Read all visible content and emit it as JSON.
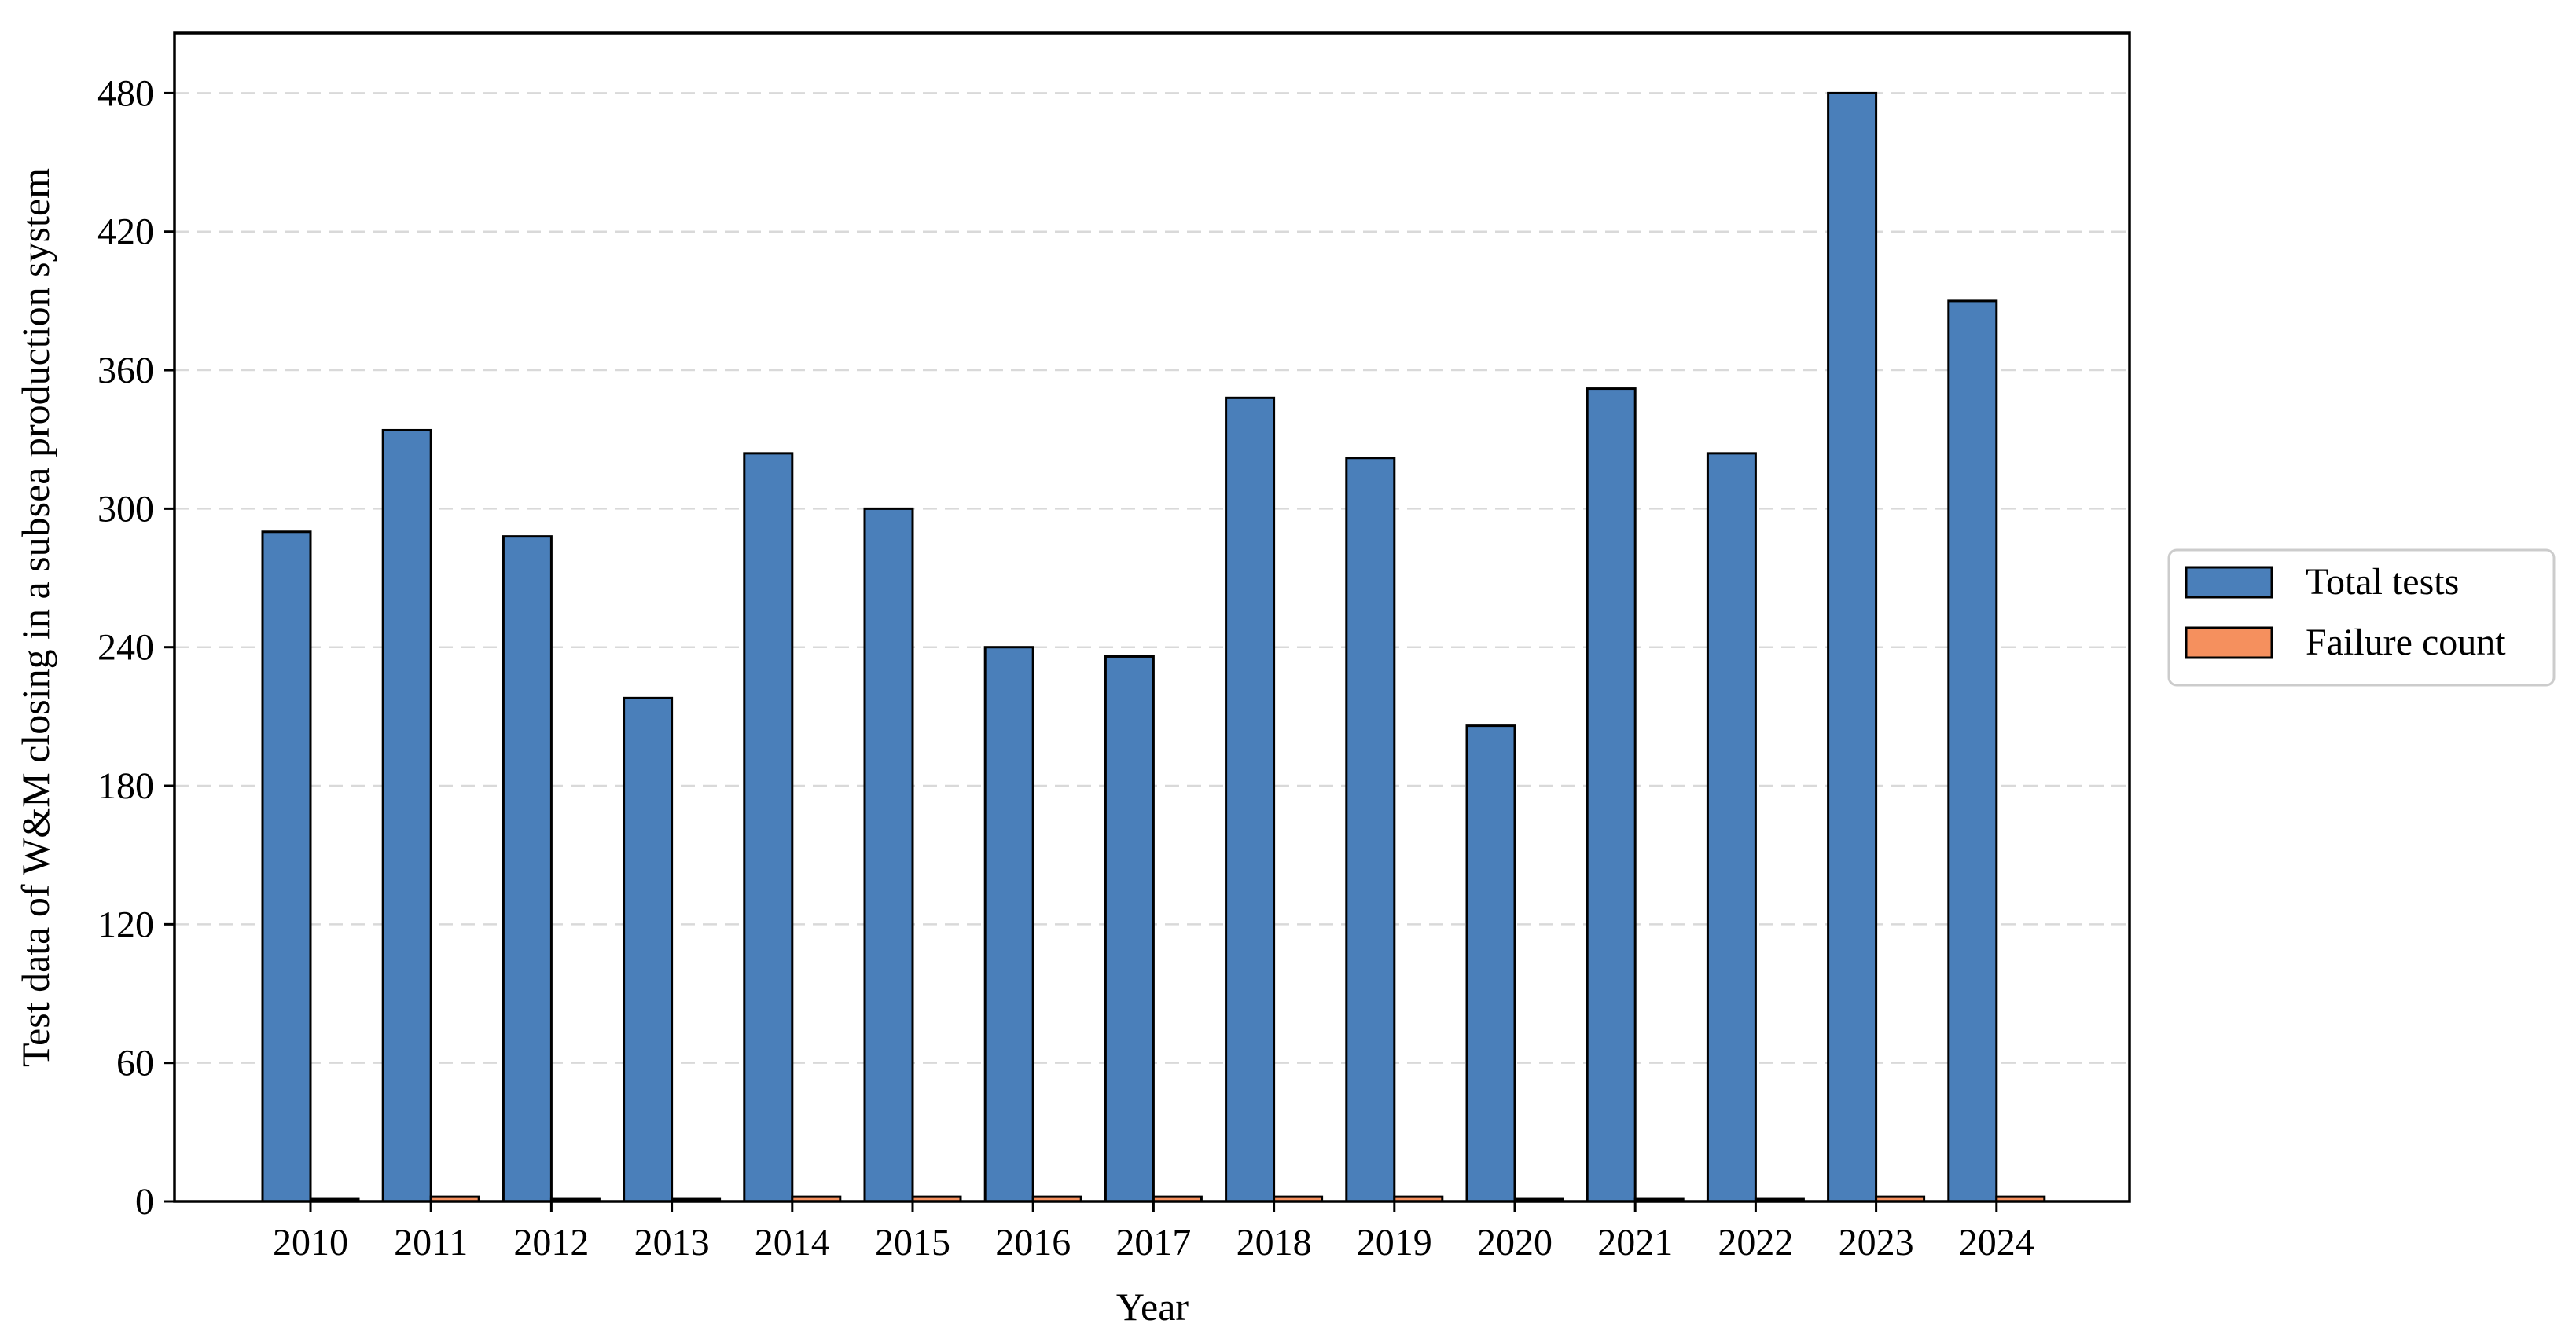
{
  "chart_data": {
    "type": "bar",
    "title": "",
    "xlabel": "Year",
    "ylabel": "Test data of W&M closing in a subsea production system",
    "categories": [
      "2010",
      "2011",
      "2012",
      "2013",
      "2014",
      "2015",
      "2016",
      "2017",
      "2018",
      "2019",
      "2020",
      "2021",
      "2022",
      "2023",
      "2024"
    ],
    "series": [
      {
        "name": "Total tests",
        "color": "#4a7fba",
        "values": [
          290,
          334,
          288,
          218,
          324,
          300,
          240,
          236,
          348,
          322,
          206,
          352,
          324,
          480,
          390
        ]
      },
      {
        "name": "Failure count",
        "color": "#f5905e",
        "values": [
          1,
          2,
          1,
          1,
          2,
          2,
          2,
          2,
          2,
          2,
          1,
          1,
          1,
          2,
          2
        ]
      }
    ],
    "ylim": [
      0,
      506
    ],
    "yticks": [
      0,
      60,
      120,
      180,
      240,
      300,
      360,
      420,
      480
    ],
    "grid": "y-dashed",
    "legend_position": "right-outside"
  }
}
